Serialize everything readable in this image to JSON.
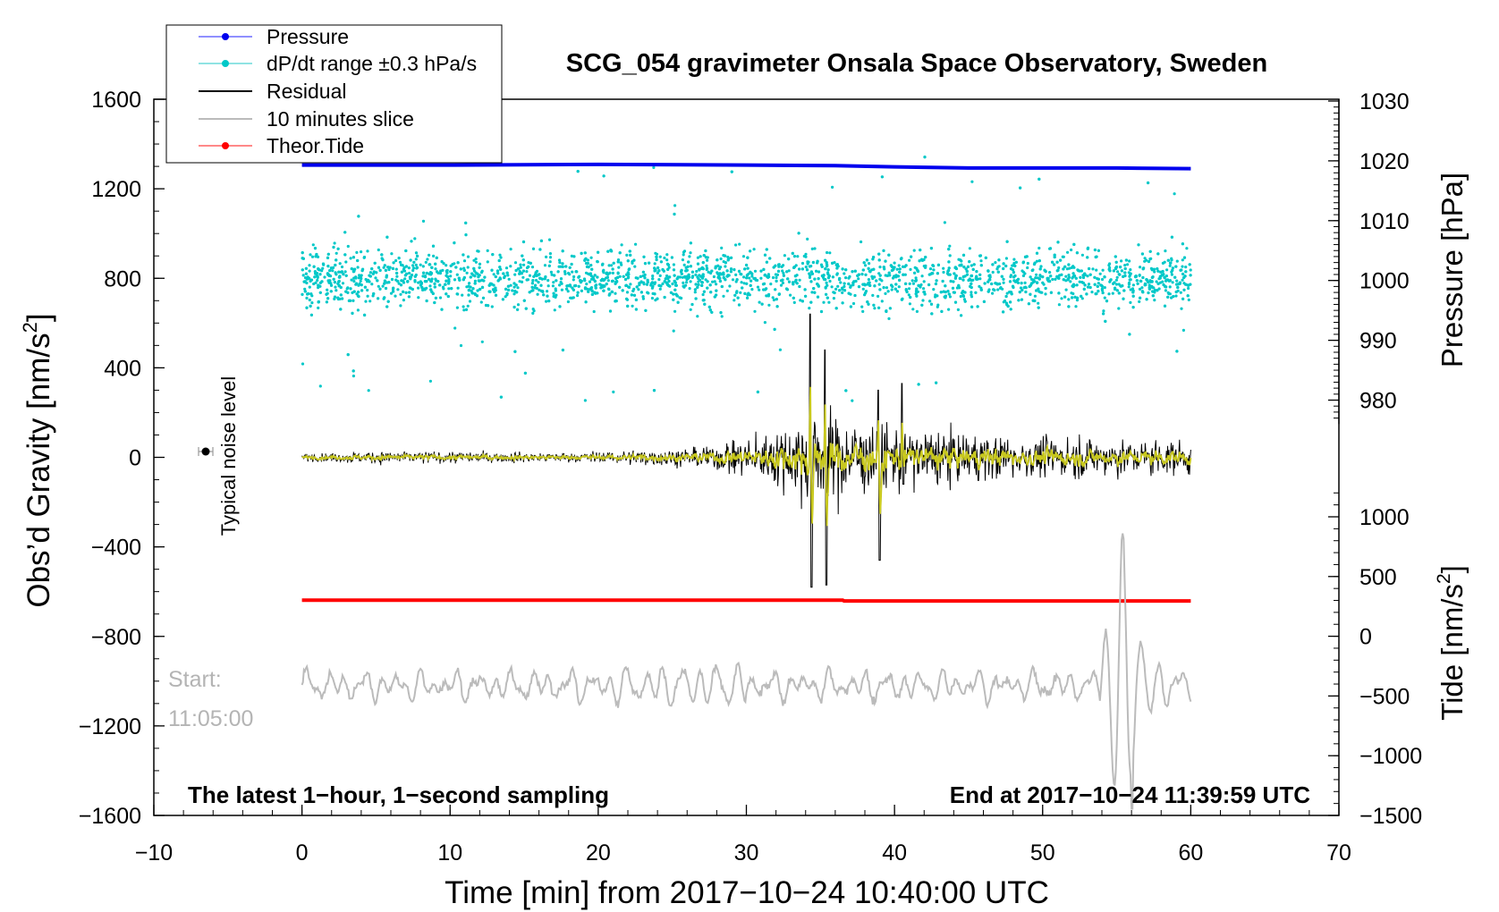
{
  "chart_data": {
    "type": "line",
    "title": "SCG_054 gravimeter Onsala Space Observatory, Sweden",
    "xlabel": "Time [min] from 2017−10−24 10:40:00 UTC",
    "xlim": [
      -10,
      70
    ],
    "xticks": [
      "−10",
      "0",
      "10",
      "20",
      "30",
      "40",
      "50",
      "60",
      "70"
    ],
    "xtick_values": [
      -10,
      0,
      10,
      20,
      30,
      40,
      50,
      60,
      70
    ],
    "y_left": {
      "label_main": "Obs’d Gravity [nm/s",
      "label_sup": "2",
      "label_end": "]",
      "lim": [
        -1600,
        1600
      ],
      "ticks": [
        "1600",
        "1200",
        "800",
        "400",
        "0",
        "−400",
        "−800",
        "−1200",
        "−1600"
      ],
      "tick_values": [
        1600,
        1200,
        800,
        400,
        0,
        -400,
        -800,
        -1200,
        -1600
      ]
    },
    "y_right_pressure": {
      "label": "Pressure [hPa]",
      "ticks": [
        "1030",
        "1020",
        "1010",
        "1000",
        "990",
        "980"
      ],
      "tick_values": [
        1030,
        1020,
        1010,
        1000,
        990,
        980
      ]
    },
    "y_right_tide": {
      "label_main": "Tide [nm/s",
      "label_sup": "2",
      "label_end": "]",
      "ticks": [
        "1000",
        "500",
        "0",
        "−500",
        "−1000",
        "−1500"
      ],
      "tick_values": [
        1000,
        500,
        0,
        -500,
        -1000,
        -1500
      ]
    },
    "legend": {
      "placement": "top-left",
      "entries": [
        "Pressure",
        "dP/dt range ±0.3 hPa/s",
        "Residual",
        "10 minutes slice",
        "Theor.Tide"
      ]
    },
    "series": [
      {
        "name": "Pressure",
        "color": "#0000ee",
        "axis": "pressure",
        "x": [
          0,
          10,
          20,
          30,
          36,
          40,
          45,
          50,
          55,
          60
        ],
        "values": [
          1019.3,
          1019.3,
          1019.4,
          1019.3,
          1019.2,
          1019.0,
          1018.8,
          1018.8,
          1018.8,
          1018.7
        ]
      },
      {
        "name": "dP/dt range ±0.3 hPa/s",
        "color": "#00c8c8",
        "axis": "gravity",
        "center": 800,
        "spread": 200
      },
      {
        "name": "Residual",
        "color": "#000000",
        "axis": "gravity",
        "x_range": [
          0,
          60
        ],
        "envelope": [
          [
            0,
            20
          ],
          [
            5,
            35
          ],
          [
            18,
            25
          ],
          [
            26,
            50
          ],
          [
            30,
            100
          ],
          [
            33,
            180
          ],
          [
            34,
            300
          ],
          [
            36,
            220
          ],
          [
            40,
            180
          ],
          [
            46,
            120
          ],
          [
            50,
            110
          ],
          [
            56,
            100
          ],
          [
            60,
            90
          ]
        ],
        "spikes": [
          [
            34.3,
            640,
            -580
          ],
          [
            35.3,
            480,
            -570
          ],
          [
            38.9,
            300,
            -460
          ],
          [
            40.5,
            330,
            -120
          ]
        ]
      },
      {
        "name": "10 minutes slice",
        "color": "#bbbbbb",
        "axis": "gravity",
        "x_range": [
          0,
          60
        ],
        "center": -1020,
        "peak": {
          "x": 55.4,
          "max": -340,
          "min": -1570
        }
      },
      {
        "name": "Theor.Tide",
        "color": "#ff0000",
        "axis": "tide",
        "x": [
          0,
          36.5,
          36.6,
          60
        ],
        "values": [
          302,
          302,
          296,
          296
        ]
      }
    ],
    "noise_level": {
      "label": "Typical noise level",
      "x": -7,
      "value": 0,
      "error": 20
    },
    "start_label": "Start:",
    "start_time": "11:05:00",
    "bottom_left_note": "The latest 1−hour, 1−second sampling",
    "bottom_right_note": "End at 2017−10−24 11:39:59 UTC"
  }
}
